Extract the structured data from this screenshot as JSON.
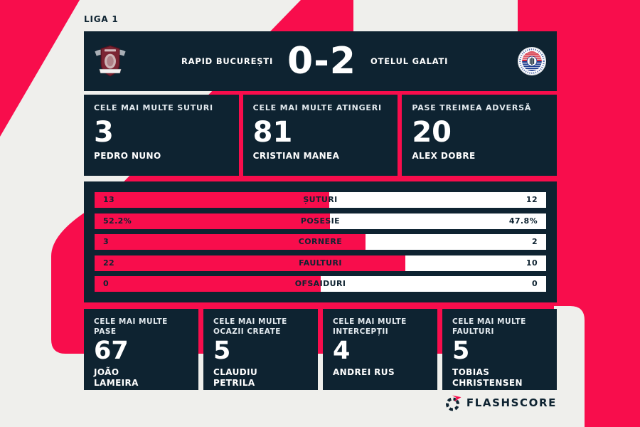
{
  "colors": {
    "pink": "#f80d4c",
    "navy": "#0e2331",
    "background": "#efefec",
    "white": "#ffffff",
    "title": "#e2e9ee",
    "maroon": "#7b2433",
    "badge_blue": "#1e3e8f",
    "badge_red": "#d42a3c"
  },
  "league": {
    "name": "LIGA 1"
  },
  "header": {
    "home_team": "RAPID BUCUREȘTI",
    "away_team": "OTELUL GALATI",
    "score": "0-2",
    "home_logo": "rapid-bucuresti-crest",
    "away_logo": "otelul-galati-badge"
  },
  "top_stats": [
    {
      "title": "CELE MAI MULTE SUTURI",
      "value": "3",
      "player": "PEDRO NUNO"
    },
    {
      "title": "CELE MAI MULTE ATINGERI",
      "value": "81",
      "player": "CRISTIAN MANEA"
    },
    {
      "title": "PASE TREIMEA ADVERSĂ",
      "value": "20",
      "player": "ALEX DOBRE"
    }
  ],
  "bars": {
    "rows": [
      {
        "label": "ȘUTURI",
        "home": 13,
        "away": 12,
        "home_display": "13",
        "away_display": "12"
      },
      {
        "label": "POSESIE",
        "home": 52.2,
        "away": 47.8,
        "home_display": "52.2%",
        "away_display": "47.8%"
      },
      {
        "label": "CORNERE",
        "home": 3,
        "away": 2,
        "home_display": "3",
        "away_display": "2"
      },
      {
        "label": "FAULTURI",
        "home": 22,
        "away": 10,
        "home_display": "22",
        "away_display": "10"
      },
      {
        "label": "OFSAIDURI",
        "home": 0,
        "away": 0,
        "home_display": "0",
        "away_display": "0"
      }
    ]
  },
  "bottom_stats": [
    {
      "title": "CELE MAI MULTE PASE",
      "value": "67",
      "player": "JOÃO LAMEIRA"
    },
    {
      "title": "CELE MAI MULTE OCAZII CREATE",
      "value": "5",
      "player": "CLAUDIU PETRILA"
    },
    {
      "title": "CELE MAI MULTE INTERCEPȚII",
      "value": "4",
      "player": "ANDREI RUS"
    },
    {
      "title": "CELE MAI MULTE FAULTURI",
      "value": "5",
      "player": "TOBIAS CHRISTENSEN"
    }
  ],
  "footer": {
    "brand": "FLASHSCORE"
  },
  "chart_data": {
    "type": "bar",
    "orientation": "horizontal",
    "title": "RAPID BUCUREȘTI 0-2 OTELUL GALATI",
    "categories": [
      "ȘUTURI",
      "POSESIE",
      "CORNERE",
      "FAULTURI",
      "OFSAIDURI"
    ],
    "series": [
      {
        "name": "RAPID BUCUREȘTI",
        "color": "#f80d4c",
        "values": [
          13,
          52.2,
          3,
          22,
          0
        ]
      },
      {
        "name": "OTELUL GALATI",
        "color": "#ffffff",
        "values": [
          12,
          47.8,
          2,
          10,
          0
        ]
      }
    ],
    "value_labels": {
      "home": [
        "13",
        "52.2%",
        "3",
        "22",
        "0"
      ],
      "away": [
        "12",
        "47.8%",
        "2",
        "10",
        "0"
      ]
    },
    "note": "Pink segment width = home/(home+away) of row total; 50% when both values are 0"
  }
}
